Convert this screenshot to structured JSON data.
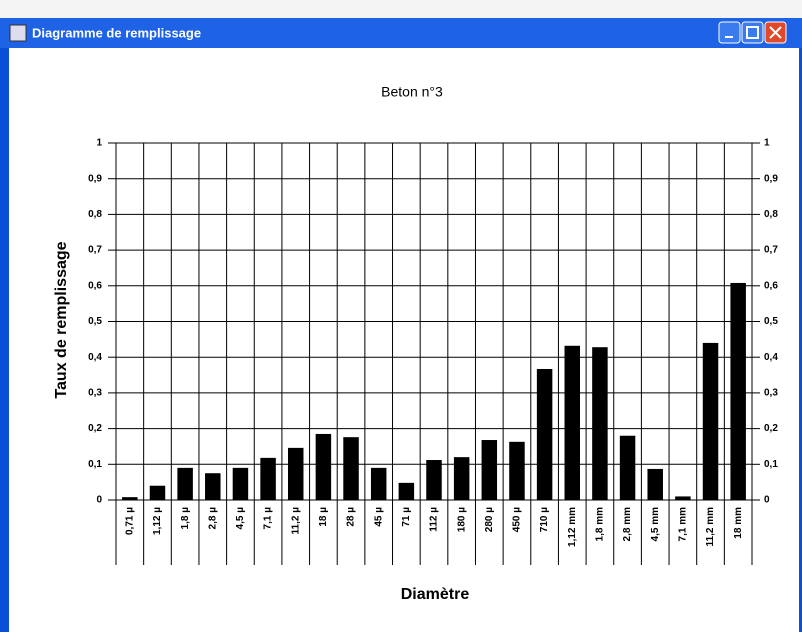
{
  "window": {
    "title": "Diagramme de remplissage"
  },
  "chart_data": {
    "type": "bar",
    "title": "Beton n°3",
    "x_label": "Diamètre",
    "y_label": "Taux de remplissage",
    "categories": [
      "0,71 µ",
      "1,12 µ",
      "1,8 µ",
      "2,8 µ",
      "4,5 µ",
      "7,1 µ",
      "11,2 µ",
      "18 µ",
      "28 µ",
      "45 µ",
      "71 µ",
      "112 µ",
      "180 µ",
      "280 µ",
      "450 µ",
      "710 µ",
      "1,12 mm",
      "1,8 mm",
      "2,8 mm",
      "4,5 mm",
      "7,1 mm",
      "11,2 mm",
      "18 mm"
    ],
    "values": [
      0.008,
      0.04,
      0.09,
      0.075,
      0.09,
      0.118,
      0.146,
      0.185,
      0.176,
      0.09,
      0.048,
      0.112,
      0.12,
      0.168,
      0.163,
      0.367,
      0.432,
      0.428,
      0.18,
      0.087,
      0.01,
      0.44,
      0.608
    ],
    "color": "#000000",
    "ylim": [
      0,
      1
    ],
    "yticks": [
      0,
      {
        "value": 0.1,
        "label": "0,1"
      },
      {
        "value": 0.2,
        "label": "0,2"
      },
      {
        "value": 0.3,
        "label": "0,3"
      },
      {
        "value": 0.4,
        "label": "0,4"
      },
      {
        "value": 0.5,
        "label": "0,5"
      },
      {
        "value": 0.6,
        "label": "0,6"
      },
      {
        "value": 0.7,
        "label": "0,7"
      },
      {
        "value": 0.8,
        "label": "0,8"
      },
      {
        "value": 0.9,
        "label": "0,9"
      },
      1
    ],
    "grid": true,
    "right_axis": true
  }
}
